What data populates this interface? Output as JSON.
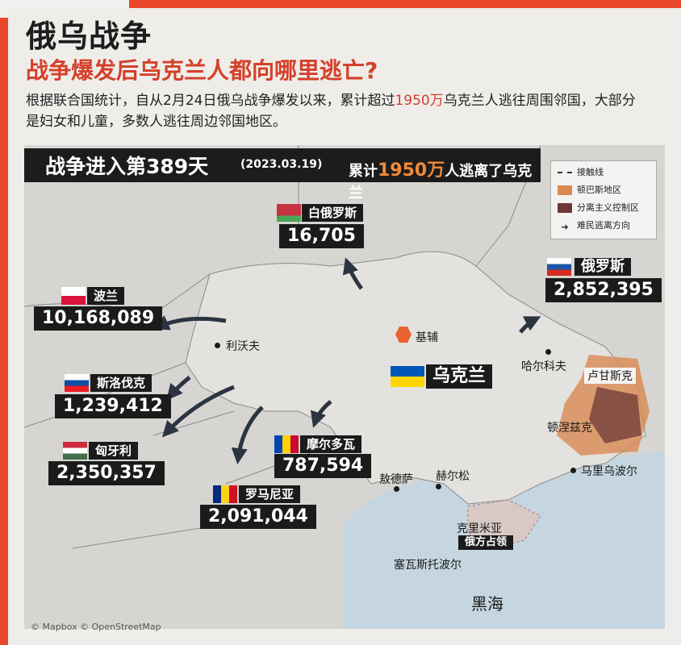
{
  "title": "俄乌战争",
  "subtitle": "战争爆发后乌克兰人都向哪里逃亡?",
  "intro": {
    "part1": "根据联合国统计，自从2月24日俄乌战争爆发以来，累计超过",
    "highlight": "1950万",
    "part2": "乌克兰人逃往周围邻国，大部分是妇女和儿童，多数人逃往周边邻国地区。"
  },
  "banner": {
    "days": "战争进入第389天",
    "date": "(2023.03.19)",
    "total_prefix": "累计",
    "total_num": "1950万",
    "total_suffix": "人逃离了乌克兰"
  },
  "legend": {
    "contact_line": "接触线",
    "donbas": "顿巴斯地区",
    "separatist": "分离主义控制区",
    "refugee_direction": "难民逃离方向"
  },
  "countries": {
    "belarus": {
      "name": "白俄罗斯",
      "count": "16,705"
    },
    "russia": {
      "name": "俄罗斯",
      "count": "2,852,395"
    },
    "poland": {
      "name": "波兰",
      "count": "10,168,089"
    },
    "slovakia": {
      "name": "斯洛伐克",
      "count": "1,239,412"
    },
    "hungary": {
      "name": "匈牙利",
      "count": "2,350,357"
    },
    "moldova": {
      "name": "摩尔多瓦",
      "count": "787,594"
    },
    "romania": {
      "name": "罗马尼亚",
      "count": "2,091,044"
    },
    "ukraine": {
      "name": "乌克兰"
    }
  },
  "cities": {
    "kyiv": "基辅",
    "lviv": "利沃夫",
    "kharkiv": "哈尔科夫",
    "luhansk": "卢甘斯克",
    "donetsk": "顿涅兹克",
    "mariupol": "马里乌波尔",
    "odesa": "敖德萨",
    "kherson": "赫尔松",
    "crimea": "克里米亚",
    "crimea_note": "俄方占领",
    "sevastopol": "塞瓦斯托波尔",
    "black_sea": "黑海"
  },
  "credit": "© Mapbox © OpenStreetMap",
  "colors": {
    "accent": "#e9472b",
    "highlight_text": "#d4402a",
    "donbas": "#d98a52",
    "separatist": "#6b3a35"
  }
}
